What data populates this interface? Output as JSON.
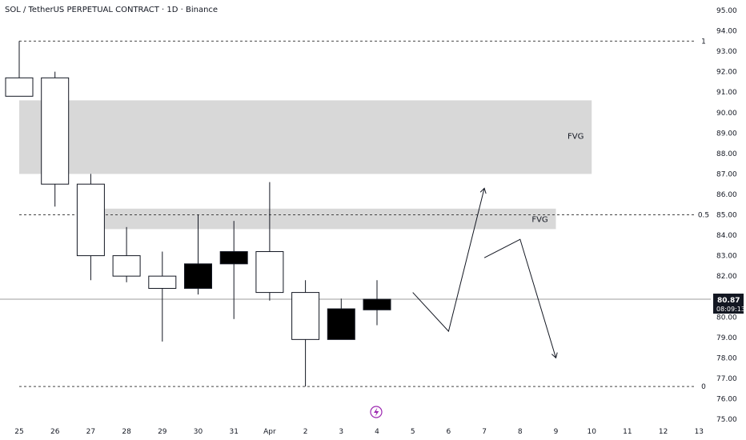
{
  "header": {
    "title": "SOL / TetherUS PERPETUAL CONTRACT · 1D · Binance"
  },
  "price_tag": {
    "price": "80.87",
    "countdown": "08:09:13",
    "bg": "#131722",
    "fg": "#ffffff"
  },
  "event_icon": {
    "icon": "lightning-icon",
    "color": "#9c27b0"
  },
  "chart_data": {
    "type": "candlestick",
    "symbol": "SOL / TetherUS PERPETUAL CONTRACT",
    "interval": "1D",
    "exchange": "Binance",
    "y_axis": {
      "ylim": [
        75,
        95
      ],
      "ticks": [
        "75.00",
        "76.00",
        "77.00",
        "78.00",
        "79.00",
        "80.00",
        "81.00",
        "82.00",
        "83.00",
        "84.00",
        "85.00",
        "86.00",
        "87.00",
        "88.00",
        "89.00",
        "90.00",
        "91.00",
        "92.00",
        "93.00",
        "94.00",
        "95.00"
      ]
    },
    "x_axis": {
      "labels": [
        "25",
        "26",
        "27",
        "28",
        "29",
        "30",
        "31",
        "Apr",
        "2",
        "3",
        "4",
        "5",
        "6",
        "7",
        "8",
        "9",
        "10",
        "11",
        "12",
        "13"
      ]
    },
    "candles": [
      {
        "date": "25",
        "open": 90.8,
        "high": 93.5,
        "low": 90.8,
        "close": 91.7
      },
      {
        "date": "26",
        "open": 86.5,
        "high": 92.0,
        "low": 85.4,
        "close": 91.7
      },
      {
        "date": "27",
        "open": 83.0,
        "high": 87.0,
        "low": 81.8,
        "close": 86.5
      },
      {
        "date": "28",
        "open": 82.0,
        "high": 84.4,
        "low": 81.7,
        "close": 83.0
      },
      {
        "date": "29",
        "open": 81.4,
        "high": 83.2,
        "low": 78.8,
        "close": 82.0
      },
      {
        "date": "30",
        "open": 82.6,
        "high": 85.0,
        "low": 81.1,
        "close": 81.4
      },
      {
        "date": "31",
        "open": 83.2,
        "high": 84.7,
        "low": 79.9,
        "close": 82.6
      },
      {
        "date": "Apr",
        "open": 81.2,
        "high": 86.6,
        "low": 80.8,
        "close": 83.2
      },
      {
        "date": "2",
        "open": 78.9,
        "high": 81.8,
        "low": 76.6,
        "close": 81.2
      },
      {
        "date": "3",
        "open": 80.4,
        "high": 80.9,
        "low": 78.9,
        "close": 78.9
      },
      {
        "date": "4",
        "open": 80.87,
        "high": 81.8,
        "low": 79.6,
        "close": 80.35
      }
    ],
    "fibonacci": [
      {
        "label": "1",
        "price": 93.5
      },
      {
        "label": "0.5",
        "price": 85.0
      },
      {
        "label": "0",
        "price": 76.6
      }
    ],
    "zones": [
      {
        "label": "FVG",
        "top": 90.6,
        "bottom": 87.0,
        "from": "25",
        "to": "10"
      },
      {
        "label": "FVG",
        "top": 85.3,
        "bottom": 84.3,
        "from": "27",
        "to": "9"
      }
    ],
    "current_price": 80.87,
    "projection_paths": [
      {
        "points": [
          [
            "5",
            81.2
          ],
          [
            "6",
            79.3
          ],
          [
            "7",
            86.3
          ]
        ]
      },
      {
        "points": [
          [
            "7",
            82.9
          ],
          [
            "8",
            83.8
          ],
          [
            "9",
            78.0
          ]
        ]
      }
    ],
    "colors": {
      "bearish": "#000000",
      "bullish": "#ffffff",
      "outline": "#131722",
      "zone": "#d8d8d8"
    }
  }
}
